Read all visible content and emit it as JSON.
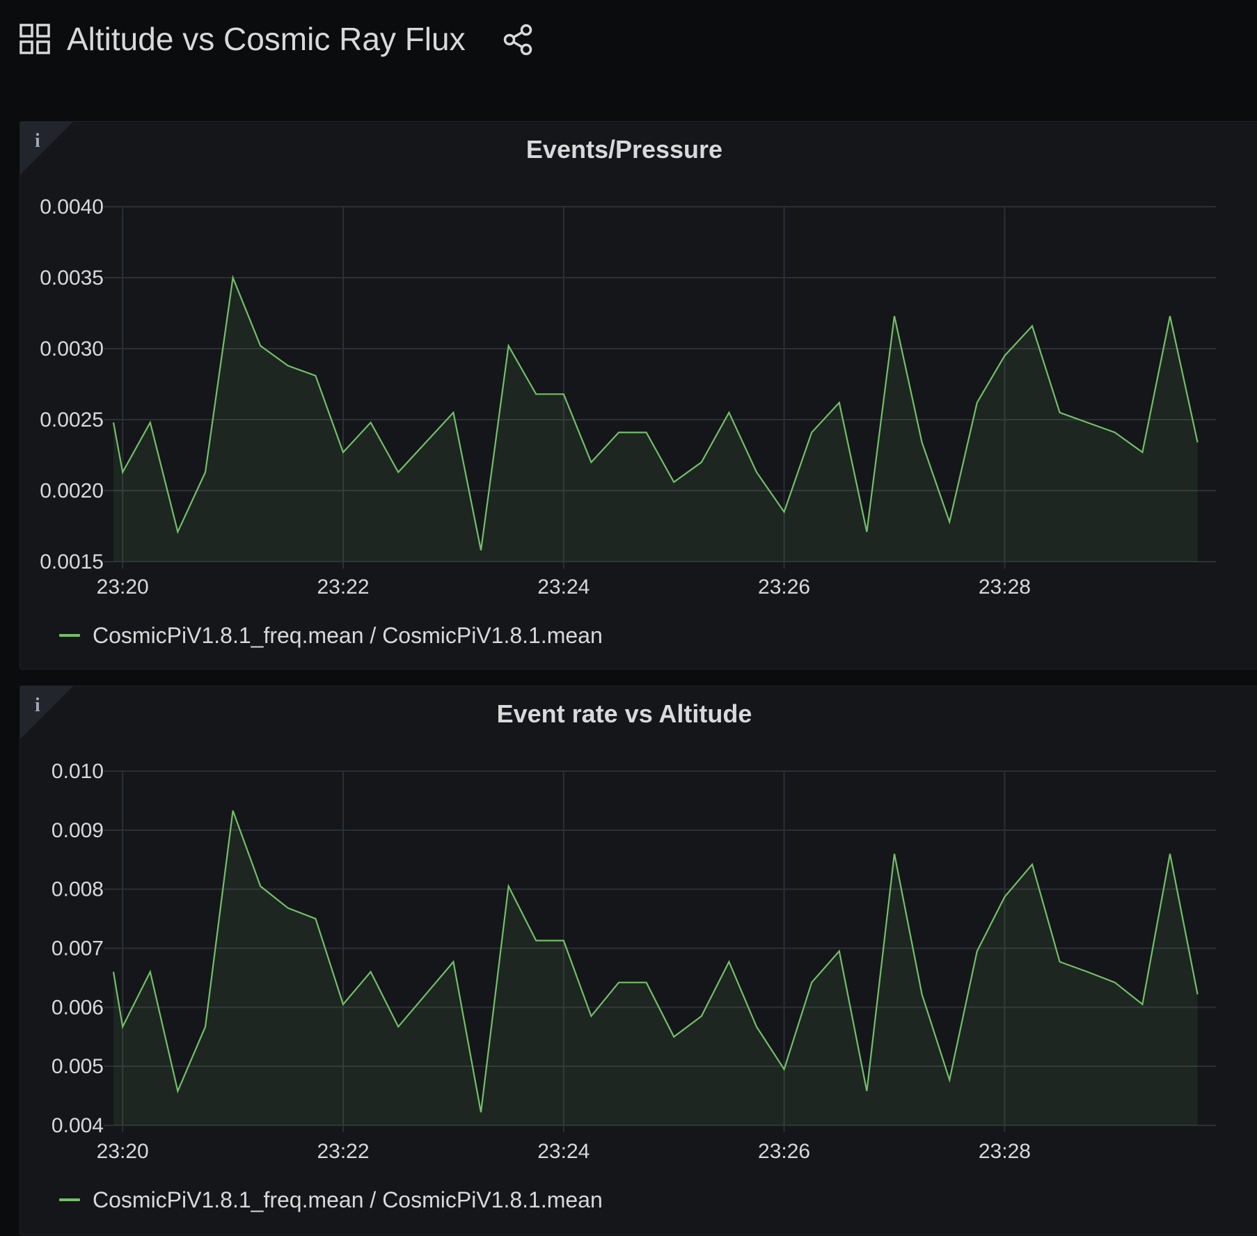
{
  "dashboard": {
    "title": "Altitude vs Cosmic Ray Flux",
    "icons": {
      "dashboard": "grid-icon",
      "share": "share-icon"
    }
  },
  "panels": [
    {
      "title": "Events/Pressure",
      "info_icon": "info-icon",
      "legend": "CosmicPiV1.8.1_freq.mean / CosmicPiV1.8.1.mean",
      "series_color": "#73bf69"
    },
    {
      "title": "Event rate vs Altitude",
      "info_icon": "info-icon",
      "legend": "CosmicPiV1.8.1_freq.mean / CosmicPiV1.8.1.mean",
      "series_color": "#73bf69"
    }
  ],
  "chart_data": [
    {
      "type": "area",
      "title": "Events/Pressure",
      "xlabel": "",
      "ylabel": "",
      "x_ticks": [
        "23:20",
        "23:22",
        "23:24",
        "23:26",
        "23:28"
      ],
      "y_ticks": [
        "0.0040",
        "0.0035",
        "0.0030",
        "0.0025",
        "0.0020",
        "0.0015"
      ],
      "ylim": [
        0.0015,
        0.004
      ],
      "xlim_minutes": [
        "23:19:55",
        "23:29:55"
      ],
      "grid": true,
      "legend_position": "bottom-left",
      "series": [
        {
          "name": "CosmicPiV1.8.1_freq.mean / CosmicPiV1.8.1.mean",
          "x": [
            "23:19:55",
            "23:20:00",
            "23:20:15",
            "23:20:30",
            "23:20:45",
            "23:21:00",
            "23:21:15",
            "23:21:30",
            "23:21:45",
            "23:22:00",
            "23:22:15",
            "23:22:30",
            "23:22:45",
            "23:23:00",
            "23:23:15",
            "23:23:30",
            "23:23:45",
            "23:24:00",
            "23:24:15",
            "23:24:30",
            "23:24:45",
            "23:25:00",
            "23:25:15",
            "23:25:30",
            "23:25:45",
            "23:26:00",
            "23:26:15",
            "23:26:30",
            "23:26:45",
            "23:27:00",
            "23:27:15",
            "23:27:30",
            "23:27:45",
            "23:28:00",
            "23:28:15",
            "23:28:30",
            "23:28:45",
            "23:29:00",
            "23:29:15",
            "23:29:30",
            "23:29:45"
          ],
          "values": [
            0.00248,
            0.00213,
            0.00248,
            0.00171,
            0.00213,
            0.0035,
            0.00302,
            0.00288,
            0.00281,
            0.00227,
            0.00248,
            0.00213,
            0.00234,
            0.00255,
            0.00158,
            0.00302,
            0.00268,
            0.00268,
            0.0022,
            0.00241,
            0.00241,
            0.00206,
            0.0022,
            0.00255,
            0.00213,
            0.00185,
            0.00241,
            0.00262,
            0.00171,
            0.00323,
            0.00234,
            0.00178,
            0.00262,
            0.00295,
            0.00316,
            0.00255,
            0.00248,
            0.00241,
            0.00227,
            0.00323,
            0.00234
          ]
        }
      ]
    },
    {
      "type": "area",
      "title": "Event rate vs Altitude",
      "xlabel": "",
      "ylabel": "",
      "x_ticks": [
        "23:20",
        "23:22",
        "23:24",
        "23:26",
        "23:28"
      ],
      "y_ticks": [
        "0.010",
        "0.009",
        "0.008",
        "0.007",
        "0.006",
        "0.005",
        "0.004"
      ],
      "ylim": [
        0.004,
        0.01
      ],
      "xlim_minutes": [
        "23:19:55",
        "23:29:55"
      ],
      "grid": true,
      "legend_position": "bottom-left",
      "series": [
        {
          "name": "CosmicPiV1.8.1_freq.mean / CosmicPiV1.8.1.mean",
          "x": [
            "23:19:55",
            "23:20:00",
            "23:20:15",
            "23:20:30",
            "23:20:45",
            "23:21:00",
            "23:21:15",
            "23:21:30",
            "23:21:45",
            "23:22:00",
            "23:22:15",
            "23:22:30",
            "23:22:45",
            "23:23:00",
            "23:23:15",
            "23:23:30",
            "23:23:45",
            "23:24:00",
            "23:24:15",
            "23:24:30",
            "23:24:45",
            "23:25:00",
            "23:25:15",
            "23:25:30",
            "23:25:45",
            "23:26:00",
            "23:26:15",
            "23:26:30",
            "23:26:45",
            "23:27:00",
            "23:27:15",
            "23:27:30",
            "23:27:45",
            "23:28:00",
            "23:28:15",
            "23:28:30",
            "23:28:45",
            "23:29:00",
            "23:29:15",
            "23:29:30",
            "23:29:45"
          ],
          "values": [
            0.0066,
            0.00567,
            0.0066,
            0.00458,
            0.00567,
            0.00933,
            0.00805,
            0.00768,
            0.0075,
            0.00605,
            0.0066,
            0.00567,
            0.00622,
            0.00677,
            0.00422,
            0.00805,
            0.00713,
            0.00713,
            0.00585,
            0.00642,
            0.00642,
            0.0055,
            0.00585,
            0.00677,
            0.00567,
            0.00495,
            0.00642,
            0.00695,
            0.00458,
            0.0086,
            0.00622,
            0.00477,
            0.00695,
            0.00787,
            0.00842,
            0.00677,
            0.0066,
            0.00642,
            0.00605,
            0.0086,
            0.00622
          ]
        }
      ]
    }
  ]
}
